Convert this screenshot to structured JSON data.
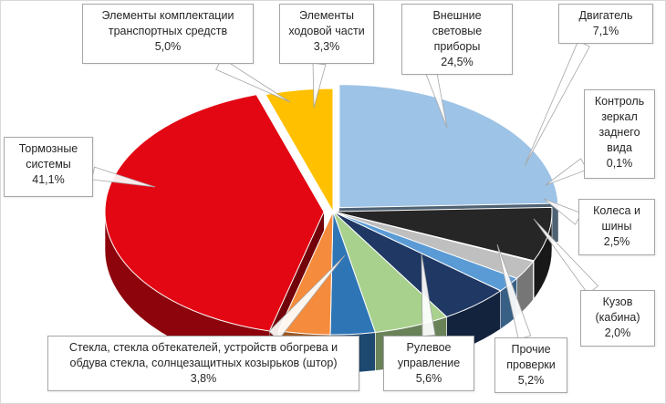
{
  "chart_data": {
    "type": "pie",
    "style": "3d-exploded",
    "value_unit": "%",
    "slices": [
      {
        "label": "Внешние световые\nприборы",
        "value": 24.5,
        "value_text": "24,5%",
        "color": "#9dc3e6"
      },
      {
        "label": "Двигатель",
        "value": 7.1,
        "value_text": "7,1%",
        "color": "#262626"
      },
      {
        "label": "Контроль\nзеркал\nзаднего\nвида",
        "value": 0.1,
        "value_text": "0,1%",
        "color": "#d9d9d9"
      },
      {
        "label": "Колеса и\nшины",
        "value": 2.5,
        "value_text": "2,5%",
        "color": "#bfbfbf"
      },
      {
        "label": "Кузов\n(кабина)",
        "value": 2.0,
        "value_text": "2,0%",
        "color": "#5b9bd5"
      },
      {
        "label": "Прочие\nпроверки",
        "value": 5.2,
        "value_text": "5,2%",
        "color": "#1f3864"
      },
      {
        "label": "Рулевое\nуправление",
        "value": 5.6,
        "value_text": "5,6%",
        "color": "#a9d18e"
      },
      {
        "label": "Элементы\nходовой части",
        "value": 3.3,
        "value_text": "3,3%",
        "color": "#2e75b6"
      },
      {
        "label": "Стекла, стекла обтекателей, устройств обогрева и\nобдува стекла, солнцезащитных козырьков (штор)",
        "value": 3.8,
        "value_text": "3,8%",
        "color": "#f58b3c"
      },
      {
        "label": "Тормозные\nсистемы",
        "value": 41.1,
        "value_text": "41,1%",
        "color": "#e30613"
      },
      {
        "label": "Элементы комплектации\nтранспортных средств",
        "value": 5.0,
        "value_text": "5,0%",
        "color": "#ffc000"
      }
    ],
    "legend": "none",
    "data_labels": "callouts"
  }
}
